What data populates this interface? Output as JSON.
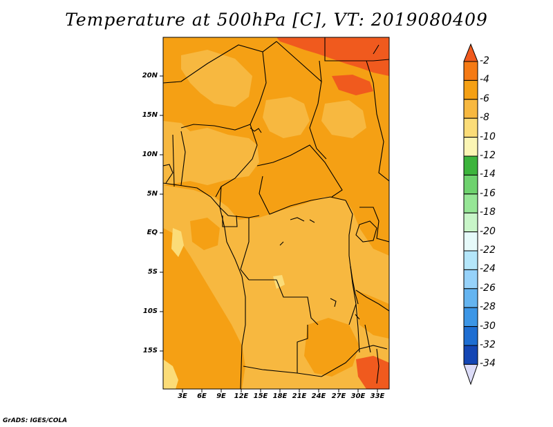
{
  "title": "Temperature at 500hPa [C], VT: 2019080409",
  "footer": "GrADS: IGES/COLA",
  "map": {
    "lat_labels": [
      "20N",
      "15N",
      "10N",
      "5N",
      "EQ",
      "5S",
      "10S",
      "15S"
    ],
    "lon_labels": [
      "3E",
      "6E",
      "9E",
      "12E",
      "15E",
      "18E",
      "21E",
      "24E",
      "27E",
      "30E",
      "33E"
    ]
  },
  "colorbar": {
    "labels": [
      "-2",
      "-4",
      "-6",
      "-8",
      "-10",
      "-12",
      "-14",
      "-16",
      "-18",
      "-20",
      "-22",
      "-24",
      "-26",
      "-28",
      "-30",
      "-32",
      "-34"
    ],
    "colors": [
      "#f05a1e",
      "#f57a14",
      "#f5a014",
      "#f7b840",
      "#fbdc78",
      "#fbf5b4",
      "#3cb43c",
      "#6ed26e",
      "#96e696",
      "#c8f5c8",
      "#e6fafa",
      "#b4e6fa",
      "#96d2fa",
      "#64b4f0",
      "#3c96e6",
      "#1e6ed2",
      "#1446b4",
      "#0a1e78",
      "#dcdcf8"
    ]
  },
  "field_colors": {
    "t_minus_2_to_4": "#f05a1e",
    "t_minus_4_to_6": "#f5a014",
    "t_minus_6_to_8": "#f7b840",
    "t_minus_8_to_10": "#fbdc78"
  }
}
